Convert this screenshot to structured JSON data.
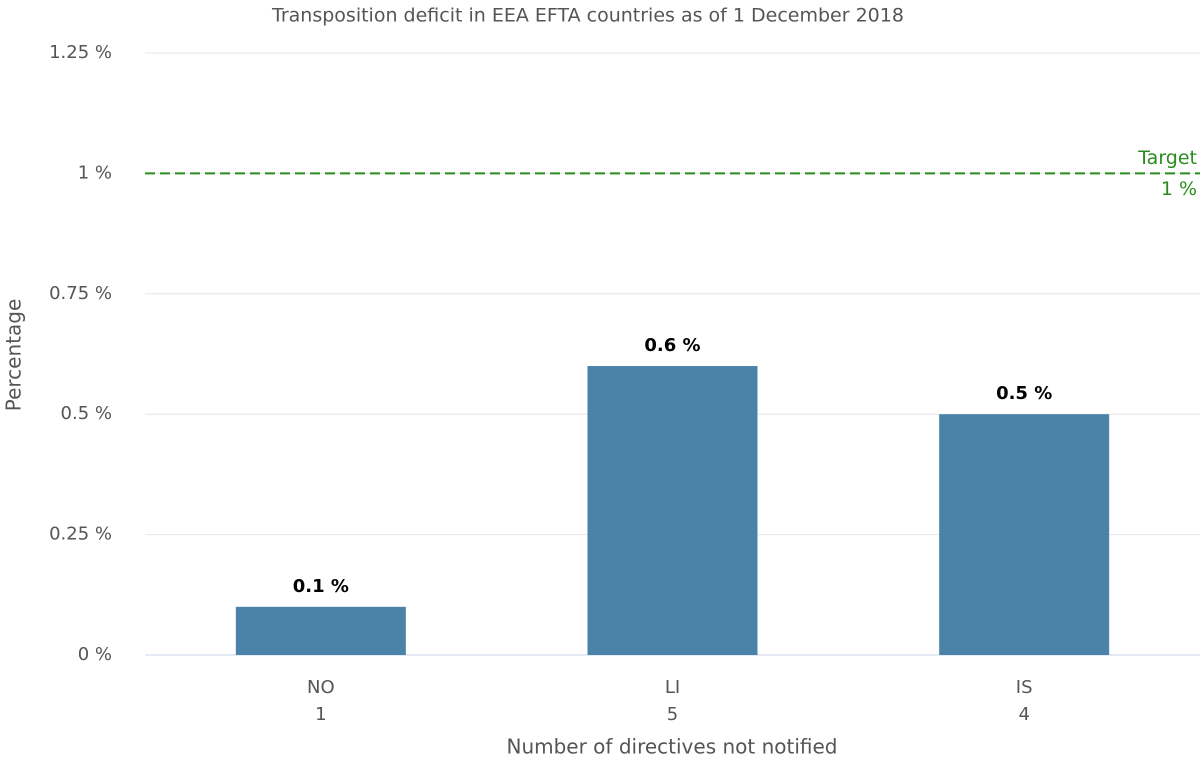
{
  "chart_data": {
    "type": "bar",
    "title": "Transposition deficit in EEA EFTA countries as of 1 December 2018",
    "y_label": "Percentage",
    "x_label": "Number of directives not notified",
    "categories": [
      "NO",
      "LI",
      "IS"
    ],
    "directives_not_notified": [
      1,
      5,
      4
    ],
    "values": [
      0.1,
      0.6,
      0.5
    ],
    "value_labels": [
      "0.1 %",
      "0.6 %",
      "0.5 %"
    ],
    "color": "#4a82a8",
    "ylim": [
      0,
      1.25
    ],
    "yticks": [
      {
        "value": 0,
        "label": "0 %"
      },
      {
        "value": 0.25,
        "label": "0.25 %"
      },
      {
        "value": 0.5,
        "label": "0.5 %"
      },
      {
        "value": 0.75,
        "label": "0.75 %"
      },
      {
        "value": 1,
        "label": "1 %"
      },
      {
        "value": 1.25,
        "label": "1.25 %"
      }
    ],
    "grid": true,
    "target": {
      "text": "Target",
      "value": 1,
      "label": "1 %",
      "color": "#2a8c1e"
    }
  }
}
